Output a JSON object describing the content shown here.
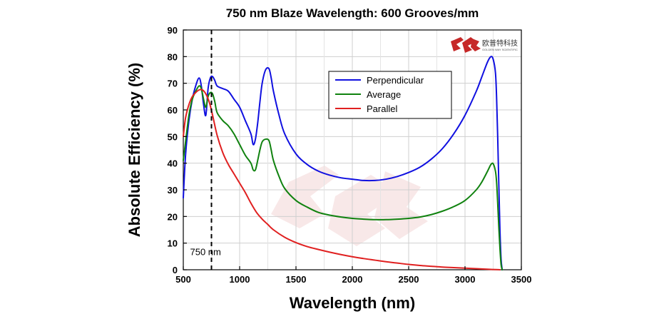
{
  "chart_data": {
    "type": "line",
    "title": "750 nm Blaze Wavelength: 600 Grooves/mm",
    "xlabel": "Wavelength (nm)",
    "ylabel": "Absolute Efficiency (%)",
    "xlim": [
      500,
      3500
    ],
    "ylim": [
      0,
      90
    ],
    "xticks": [
      500,
      1000,
      1500,
      2000,
      2500,
      3000,
      3500
    ],
    "yticks": [
      0,
      10,
      20,
      30,
      40,
      50,
      60,
      70,
      80,
      90
    ],
    "grid": true,
    "legend_position": "top-right",
    "annotation": {
      "text": "750 nm",
      "x": 750,
      "line_style": "dashed"
    },
    "logo": {
      "text": "欧普特科技",
      "subtext": "GOLDEN WAY SCIENTIFIC"
    },
    "series": [
      {
        "name": "Perpendicular",
        "color": "#1010e0",
        "x": [
          500,
          520,
          550,
          580,
          610,
          640,
          660,
          680,
          700,
          720,
          740,
          760,
          780,
          800,
          850,
          900,
          950,
          1000,
          1050,
          1100,
          1120,
          1140,
          1160,
          1180,
          1200,
          1230,
          1260,
          1280,
          1300,
          1350,
          1400,
          1500,
          1600,
          1700,
          1800,
          1900,
          2000,
          2100,
          2200,
          2300,
          2400,
          2500,
          2600,
          2700,
          2800,
          2900,
          3000,
          3100,
          3150,
          3200,
          3230,
          3250,
          3270,
          3280,
          3290,
          3300,
          3310,
          3320,
          3330
        ],
        "values": [
          27,
          43,
          56,
          64,
          69,
          72,
          69,
          62,
          58,
          68,
          72,
          72.5,
          71,
          69,
          68,
          67,
          64,
          61,
          56,
          51,
          47,
          49,
          55,
          63,
          70,
          75,
          75.5,
          72,
          67,
          58,
          51,
          43.5,
          39.5,
          37,
          35.5,
          34.5,
          34,
          33.5,
          33.5,
          34,
          35,
          36.5,
          38.5,
          41.5,
          45.5,
          51,
          58,
          67,
          72.5,
          78,
          80,
          79,
          74,
          65,
          50,
          32,
          15,
          4,
          0
        ]
      },
      {
        "name": "Average",
        "color": "#10820f",
        "x": [
          500,
          520,
          550,
          580,
          610,
          640,
          660,
          680,
          700,
          720,
          740,
          760,
          780,
          800,
          850,
          900,
          950,
          1000,
          1050,
          1100,
          1120,
          1140,
          1160,
          1180,
          1200,
          1230,
          1260,
          1280,
          1300,
          1350,
          1400,
          1500,
          1600,
          1700,
          1800,
          1900,
          2000,
          2100,
          2200,
          2300,
          2400,
          2500,
          2600,
          2700,
          2800,
          2900,
          3000,
          3100,
          3150,
          3200,
          3230,
          3250,
          3270,
          3280,
          3290,
          3300,
          3310,
          3320,
          3330
        ],
        "values": [
          41,
          48,
          58,
          64,
          67,
          69,
          68,
          64,
          61,
          65,
          66.5,
          66,
          63,
          59,
          56,
          54,
          51,
          47,
          43,
          40,
          37.5,
          37.5,
          41,
          45,
          48,
          49,
          48.5,
          45,
          41,
          35,
          30.5,
          26,
          23.5,
          21.5,
          20.5,
          19.8,
          19.3,
          19,
          18.8,
          18.8,
          19,
          19.3,
          19.8,
          20.7,
          22,
          23.7,
          26,
          30,
          33,
          37,
          39.5,
          39.8,
          37,
          33,
          25,
          16,
          8,
          2,
          0
        ]
      },
      {
        "name": "Parallel",
        "color": "#e02020",
        "x": [
          500,
          520,
          550,
          580,
          610,
          640,
          670,
          700,
          730,
          760,
          800,
          850,
          900,
          950,
          1000,
          1050,
          1100,
          1150,
          1200,
          1250,
          1300,
          1400,
          1500,
          1600,
          1700,
          1800,
          1900,
          2000,
          2100,
          2200,
          2300,
          2400,
          2500,
          2600,
          2700,
          2800,
          2900,
          3000,
          3100,
          3200,
          3250,
          3280,
          3300,
          3310
        ],
        "values": [
          50,
          57,
          62,
          65,
          66.5,
          67.5,
          67.5,
          66,
          63,
          58,
          50.5,
          44,
          39.5,
          36,
          32.5,
          29,
          25,
          21.5,
          19,
          17,
          15,
          12.2,
          10.2,
          8.7,
          7.6,
          6.6,
          5.7,
          4.9,
          4.2,
          3.6,
          3.0,
          2.5,
          2.0,
          1.6,
          1.3,
          1.0,
          0.8,
          0.6,
          0.4,
          0.2,
          0.1,
          0.05,
          0.02,
          0
        ]
      }
    ]
  }
}
